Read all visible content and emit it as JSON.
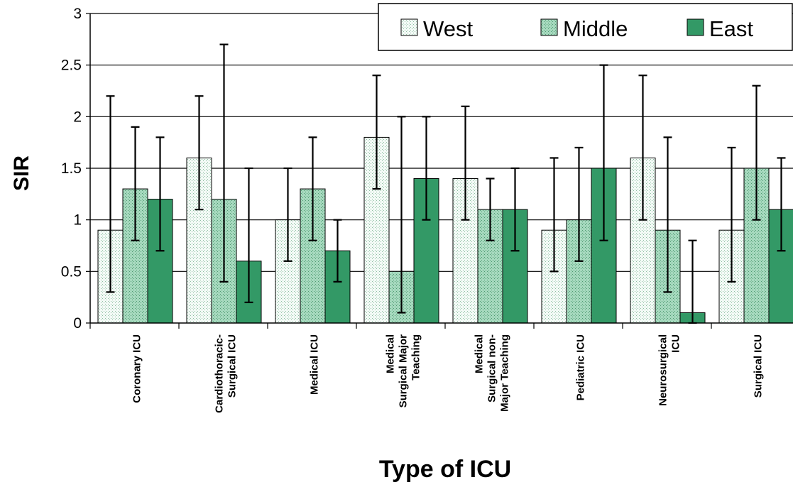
{
  "chart_data": {
    "type": "bar",
    "title": "",
    "xlabel": "Type of ICU",
    "ylabel": "SIR",
    "ylim": [
      0,
      3
    ],
    "yticks": [
      "0",
      "0.5",
      "1",
      "1.5",
      "2",
      "2.5",
      "3"
    ],
    "grid": true,
    "legend_position": "top-right",
    "categories": [
      [
        "Coronary ICU"
      ],
      [
        "Cardiothoracic-",
        "Surgical ICU"
      ],
      [
        "Medical ICU"
      ],
      [
        "Medical",
        "Surgical Major",
        "Teaching"
      ],
      [
        "Medical",
        "Surgical non-",
        "Major Teaching"
      ],
      [
        "Pediatric ICU"
      ],
      [
        "Neurosurgical",
        "ICU"
      ],
      [
        "Surgical ICU"
      ]
    ],
    "series": [
      {
        "name": "West",
        "color": "#e6f3ec",
        "pattern": "dotted",
        "values": [
          0.9,
          1.6,
          1.0,
          1.8,
          1.4,
          0.9,
          1.6,
          0.9
        ],
        "error_low": [
          0.3,
          1.1,
          0.6,
          1.3,
          1.0,
          0.5,
          1.0,
          0.4
        ],
        "error_high": [
          2.2,
          2.2,
          1.5,
          2.4,
          2.1,
          1.6,
          2.4,
          1.7
        ]
      },
      {
        "name": "Middle",
        "color": "#9fd4b8",
        "pattern": "dotted",
        "values": [
          1.3,
          1.2,
          1.3,
          0.5,
          1.1,
          1.0,
          0.9,
          1.5
        ],
        "error_low": [
          0.8,
          0.4,
          0.8,
          0.1,
          0.8,
          0.6,
          0.3,
          1.0
        ],
        "error_high": [
          1.9,
          2.7,
          1.8,
          2.0,
          1.4,
          1.7,
          1.8,
          2.3
        ]
      },
      {
        "name": "East",
        "color": "#339966",
        "pattern": "solid",
        "values": [
          1.2,
          0.6,
          0.7,
          1.4,
          1.1,
          1.5,
          0.1,
          1.1
        ],
        "error_low": [
          0.7,
          0.2,
          0.4,
          1.0,
          0.7,
          0.8,
          0.0,
          0.7
        ],
        "error_high": [
          1.8,
          1.5,
          1.0,
          2.0,
          1.5,
          2.5,
          0.8,
          1.6
        ]
      }
    ]
  }
}
